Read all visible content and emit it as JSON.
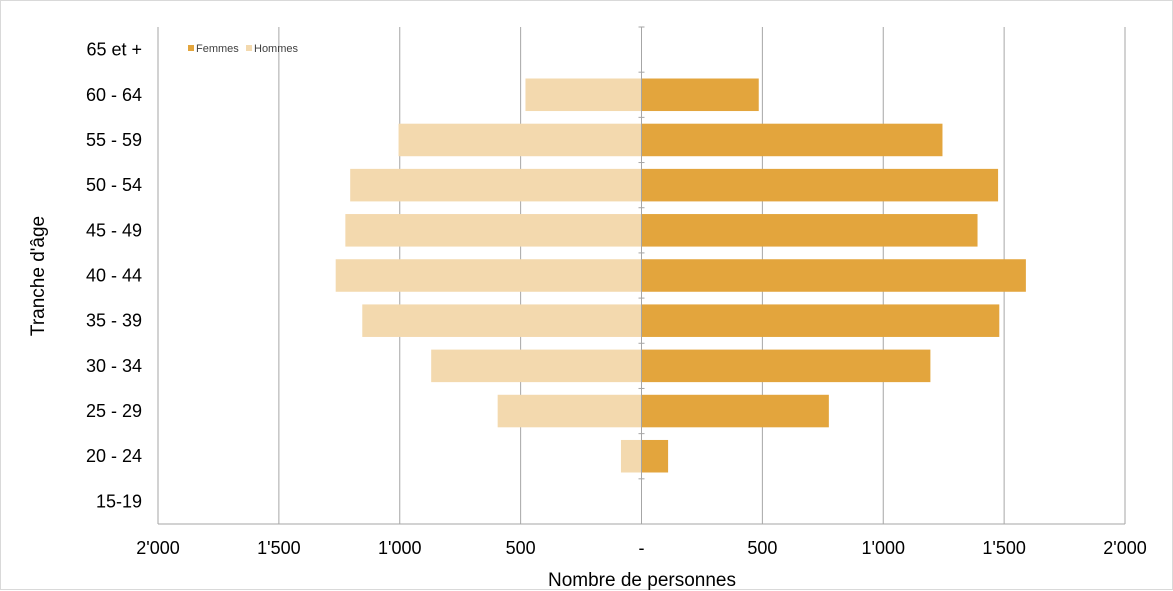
{
  "chart_data": {
    "type": "bar",
    "orientation": "horizontal",
    "layout": "population-pyramid",
    "categories": [
      "15-19",
      "20 - 24",
      "25 - 29",
      "30 - 34",
      "35 - 39",
      "40 - 44",
      "45 - 49",
      "50 - 54",
      "55 - 59",
      "60 - 64",
      "65 et +"
    ],
    "series": [
      {
        "name": "Femmes",
        "side": "right",
        "color": "#e3a53d",
        "values": [
          0,
          110,
          775,
          1195,
          1480,
          1590,
          1390,
          1475,
          1245,
          485,
          0
        ]
      },
      {
        "name": "Hommes",
        "side": "left",
        "color": "#f3d9ae",
        "values": [
          0,
          85,
          595,
          870,
          1155,
          1265,
          1225,
          1205,
          1005,
          480,
          0
        ]
      }
    ],
    "xlabel": "Nombre de personnes",
    "ylabel": "Tranche d'âge",
    "xlim": [
      -2000,
      2000
    ],
    "x_ticks": [
      -2000,
      -1500,
      -1000,
      -500,
      0,
      500,
      1000,
      1500,
      2000
    ],
    "x_tick_labels": [
      "2'000",
      "1'500",
      "1'000",
      "500",
      "-",
      "500",
      "1'000",
      "1'500",
      "2'000"
    ],
    "grid": "vertical",
    "legend_position": "top-left"
  }
}
